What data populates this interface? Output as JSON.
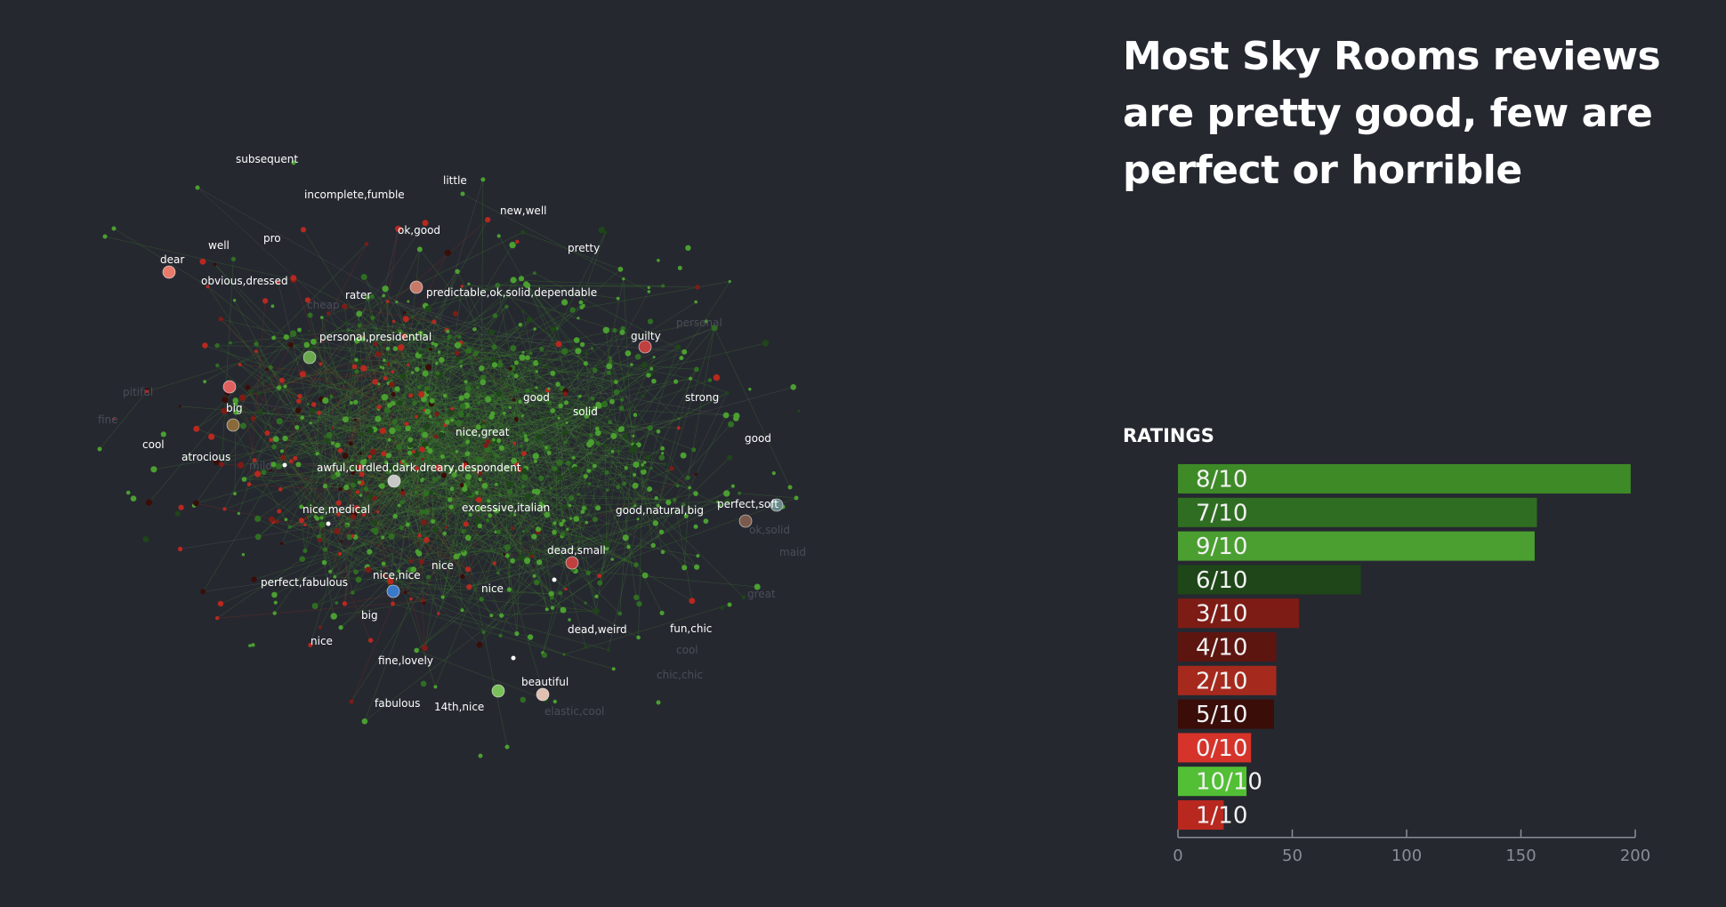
{
  "headline": "Most Sky Rooms reviews are pretty good, few are perfect or horrible",
  "network": {
    "labels": [
      "subsequent",
      "little",
      "incomplete,fumble",
      "new,well",
      "ok,good",
      "pro",
      "well",
      "pretty",
      "dear",
      "obvious,dressed",
      "rater",
      "predictable,ok,solid,dependable",
      "guilty",
      "personal,presidential",
      "good",
      "strong",
      "solid",
      "big",
      "nice,great",
      "good",
      "cool",
      "atrocious",
      "awful,curdled,dark,dreary,despondent",
      "excessive,italian",
      "perfect,soft",
      "good,natural,big",
      "nice,medical",
      "dead,small",
      "nice",
      "perfect,fabulous",
      "nice,nice",
      "nice",
      "big",
      "dead,weird",
      "fun,chic",
      "nice",
      "fine,lovely",
      "beautiful",
      "fabulous",
      "14th,nice"
    ]
  },
  "chart_data": {
    "type": "bar",
    "orientation": "horizontal",
    "title": "RATINGS",
    "categories": [
      "8/10",
      "7/10",
      "9/10",
      "6/10",
      "3/10",
      "4/10",
      "2/10",
      "5/10",
      "0/10",
      "10/10",
      "1/10"
    ],
    "values": [
      198,
      157,
      156,
      80,
      53,
      43,
      43,
      42,
      32,
      30,
      20
    ],
    "colors": [
      "#3d8a27",
      "#2f6e22",
      "#4a9f30",
      "#1e4618",
      "#7d1c15",
      "#5d1510",
      "#a52a1d",
      "#3a0d09",
      "#d6332a",
      "#52bf35",
      "#b8281f"
    ],
    "xlim": [
      0,
      200
    ],
    "xticks": [
      "0",
      "50",
      "100",
      "150",
      "200"
    ],
    "grid": false
  }
}
